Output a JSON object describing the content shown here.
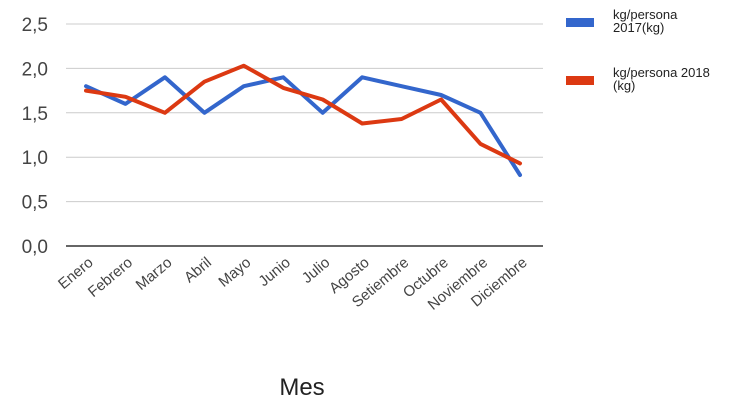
{
  "chart_data": {
    "type": "line",
    "categories": [
      "Enero",
      "Febrero",
      "Marzo",
      "Abril",
      "Mayo",
      "Junio",
      "Julio",
      "Agosto",
      "Setiembre",
      "Octubre",
      "Noviembre",
      "Diciembre"
    ],
    "series": [
      {
        "name": "kg/persona 2017(kg)",
        "legend_lines": [
          "kg/persona",
          "2017(kg)"
        ],
        "color": "#3366cc",
        "values": [
          1.8,
          1.6,
          1.9,
          1.5,
          1.8,
          1.9,
          1.5,
          1.9,
          1.8,
          1.7,
          1.5,
          0.8
        ]
      },
      {
        "name": "kg/persona 2018 (kg)",
        "legend_lines": [
          "kg/persona 2018",
          "(kg)"
        ],
        "color": "#dc3912",
        "values": [
          1.75,
          1.68,
          1.5,
          1.85,
          2.03,
          1.78,
          1.65,
          1.38,
          1.43,
          1.65,
          1.15,
          0.93
        ]
      }
    ],
    "y_ticks": [
      "0,0",
      "0,5",
      "1,0",
      "1,5",
      "2,0",
      "2,5"
    ],
    "ylim": [
      0,
      2.5
    ],
    "xlabel": "Mes",
    "ylabel": "",
    "title": "",
    "grid": true,
    "legend_position": "right"
  }
}
